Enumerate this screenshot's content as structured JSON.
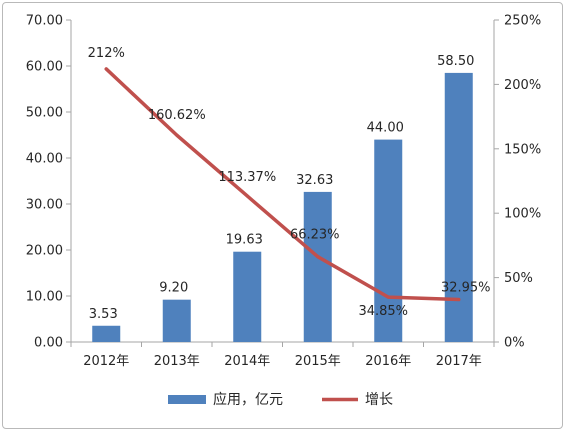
{
  "chart_data": {
    "type": "bar",
    "categories": [
      "2012年",
      "2013年",
      "2014年",
      "2015年",
      "2016年",
      "2017年"
    ],
    "series": [
      {
        "name": "应用，亿元",
        "kind": "bar",
        "axis": "left",
        "color": "#4f81bd",
        "values": [
          3.53,
          9.2,
          19.63,
          32.63,
          44.0,
          58.5
        ],
        "labels": [
          "3.53",
          "9.20",
          "19.63",
          "32.63",
          "44.00",
          "58.50"
        ]
      },
      {
        "name": "增长",
        "kind": "line",
        "axis": "right",
        "color": "#c0504d",
        "values": [
          212,
          160.62,
          113.37,
          66.23,
          34.85,
          32.95
        ],
        "labels": [
          "212%",
          "160.62%",
          "113.37%",
          "66.23%",
          "34.85%",
          "32.95%"
        ]
      }
    ],
    "y_left": {
      "ylim": [
        0,
        70
      ],
      "ticks": [
        "0.00",
        "10.00",
        "20.00",
        "30.00",
        "40.00",
        "50.00",
        "60.00",
        "70.00"
      ]
    },
    "y_right": {
      "ylim": [
        0,
        250
      ],
      "ticks": [
        "0%",
        "50%",
        "100%",
        "150%",
        "200%",
        "250%"
      ]
    },
    "grid": false,
    "legend_position": "bottom"
  }
}
